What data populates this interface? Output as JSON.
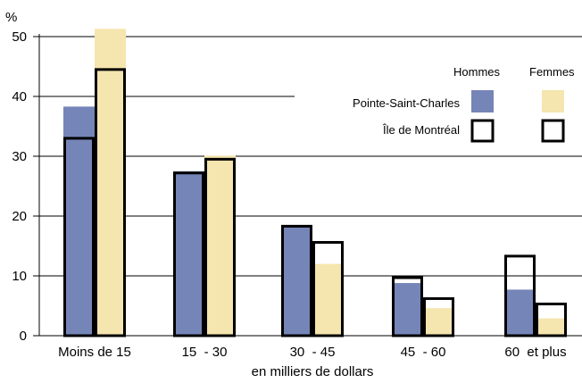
{
  "chart_data": {
    "type": "bar",
    "ylabel": "%",
    "xlabel": "en milliers de dollars",
    "ylim": [
      0,
      50
    ],
    "yticks": [
      0,
      10,
      20,
      30,
      40,
      50
    ],
    "grid": true,
    "categories": [
      "Moins de 15",
      "15  - 30",
      "30  - 45",
      "45  - 60",
      "60  et plus"
    ],
    "legend": {
      "placement": "top-right",
      "columns": [
        "Hommes",
        "Femmes"
      ],
      "rows": [
        "Pointe-Saint-Charles",
        "Île de Montréal"
      ]
    },
    "series": [
      {
        "name": "Pointe-Saint-Charles",
        "sex": "Hommes",
        "style": "filled",
        "values": [
          38.3,
          27.5,
          18.2,
          8.8,
          7.7
        ]
      },
      {
        "name": "Pointe-Saint-Charles",
        "sex": "Femmes",
        "style": "filled",
        "values": [
          51.3,
          30.1,
          12.0,
          4.6,
          2.9
        ]
      },
      {
        "name": "Île de Montréal",
        "sex": "Hommes",
        "style": "outline",
        "values": [
          33.0,
          27.2,
          18.3,
          9.7,
          13.3
        ]
      },
      {
        "name": "Île de Montréal",
        "sex": "Femmes",
        "style": "outline",
        "values": [
          44.5,
          29.5,
          15.6,
          6.2,
          5.3
        ]
      }
    ],
    "colors": {
      "hommes": "#7585b8",
      "femmes": "#f5e5ae",
      "outline": "#000000",
      "grid": "#000000"
    }
  }
}
